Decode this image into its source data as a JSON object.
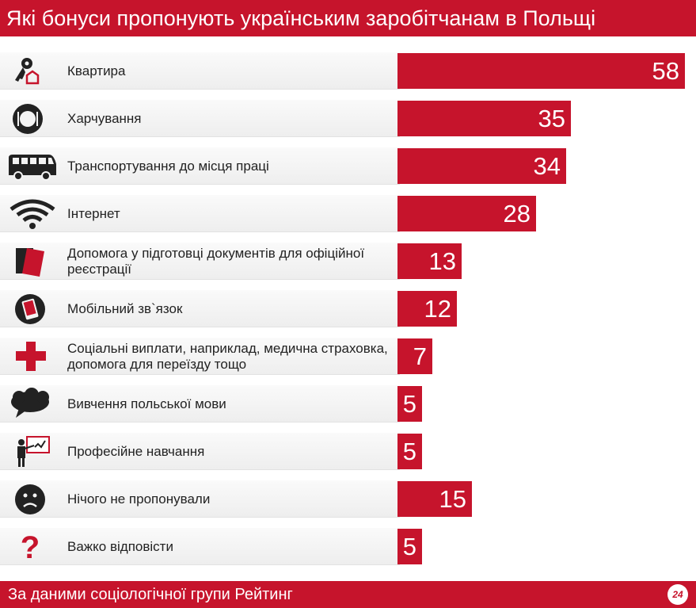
{
  "header": {
    "title": "Які бонуси пропонують українським заробітчанам в Польщі"
  },
  "footer": {
    "source": "За даними соціологічної групи Рейтинг",
    "logo_text": "24"
  },
  "colors": {
    "accent": "#c6142c",
    "icon": "#222222"
  },
  "chart_data": {
    "type": "bar",
    "orientation": "horizontal",
    "categories": [
      "Квартира",
      "Харчування",
      "Транспортування до місця праці",
      "Інтернет",
      "Допомога у підготовці документів для офіційної реєстрації",
      "Мобільний зв`язок",
      "Соціальні виплати, наприклад, медична страховка, допомога для переїзду тощо",
      "Вивчення польської мови",
      "Професійне навчання",
      "Нічого не пропонували",
      "Важко відповісти"
    ],
    "values": [
      58,
      35,
      34,
      28,
      13,
      12,
      7,
      5,
      5,
      15,
      5
    ],
    "icons": [
      "key-house-icon",
      "plate-icon",
      "minibus-icon",
      "wifi-icon",
      "documents-icon",
      "mobile-phone-icon",
      "red-cross-icon",
      "speech-cloud-icon",
      "teacher-board-icon",
      "sad-face-icon",
      "question-mark-icon"
    ],
    "title": "Які бонуси пропонують українським заробітчанам в Польщі",
    "xlabel": "",
    "ylabel": "",
    "xlim": [
      0,
      58
    ],
    "grid": false,
    "legend": "none"
  }
}
